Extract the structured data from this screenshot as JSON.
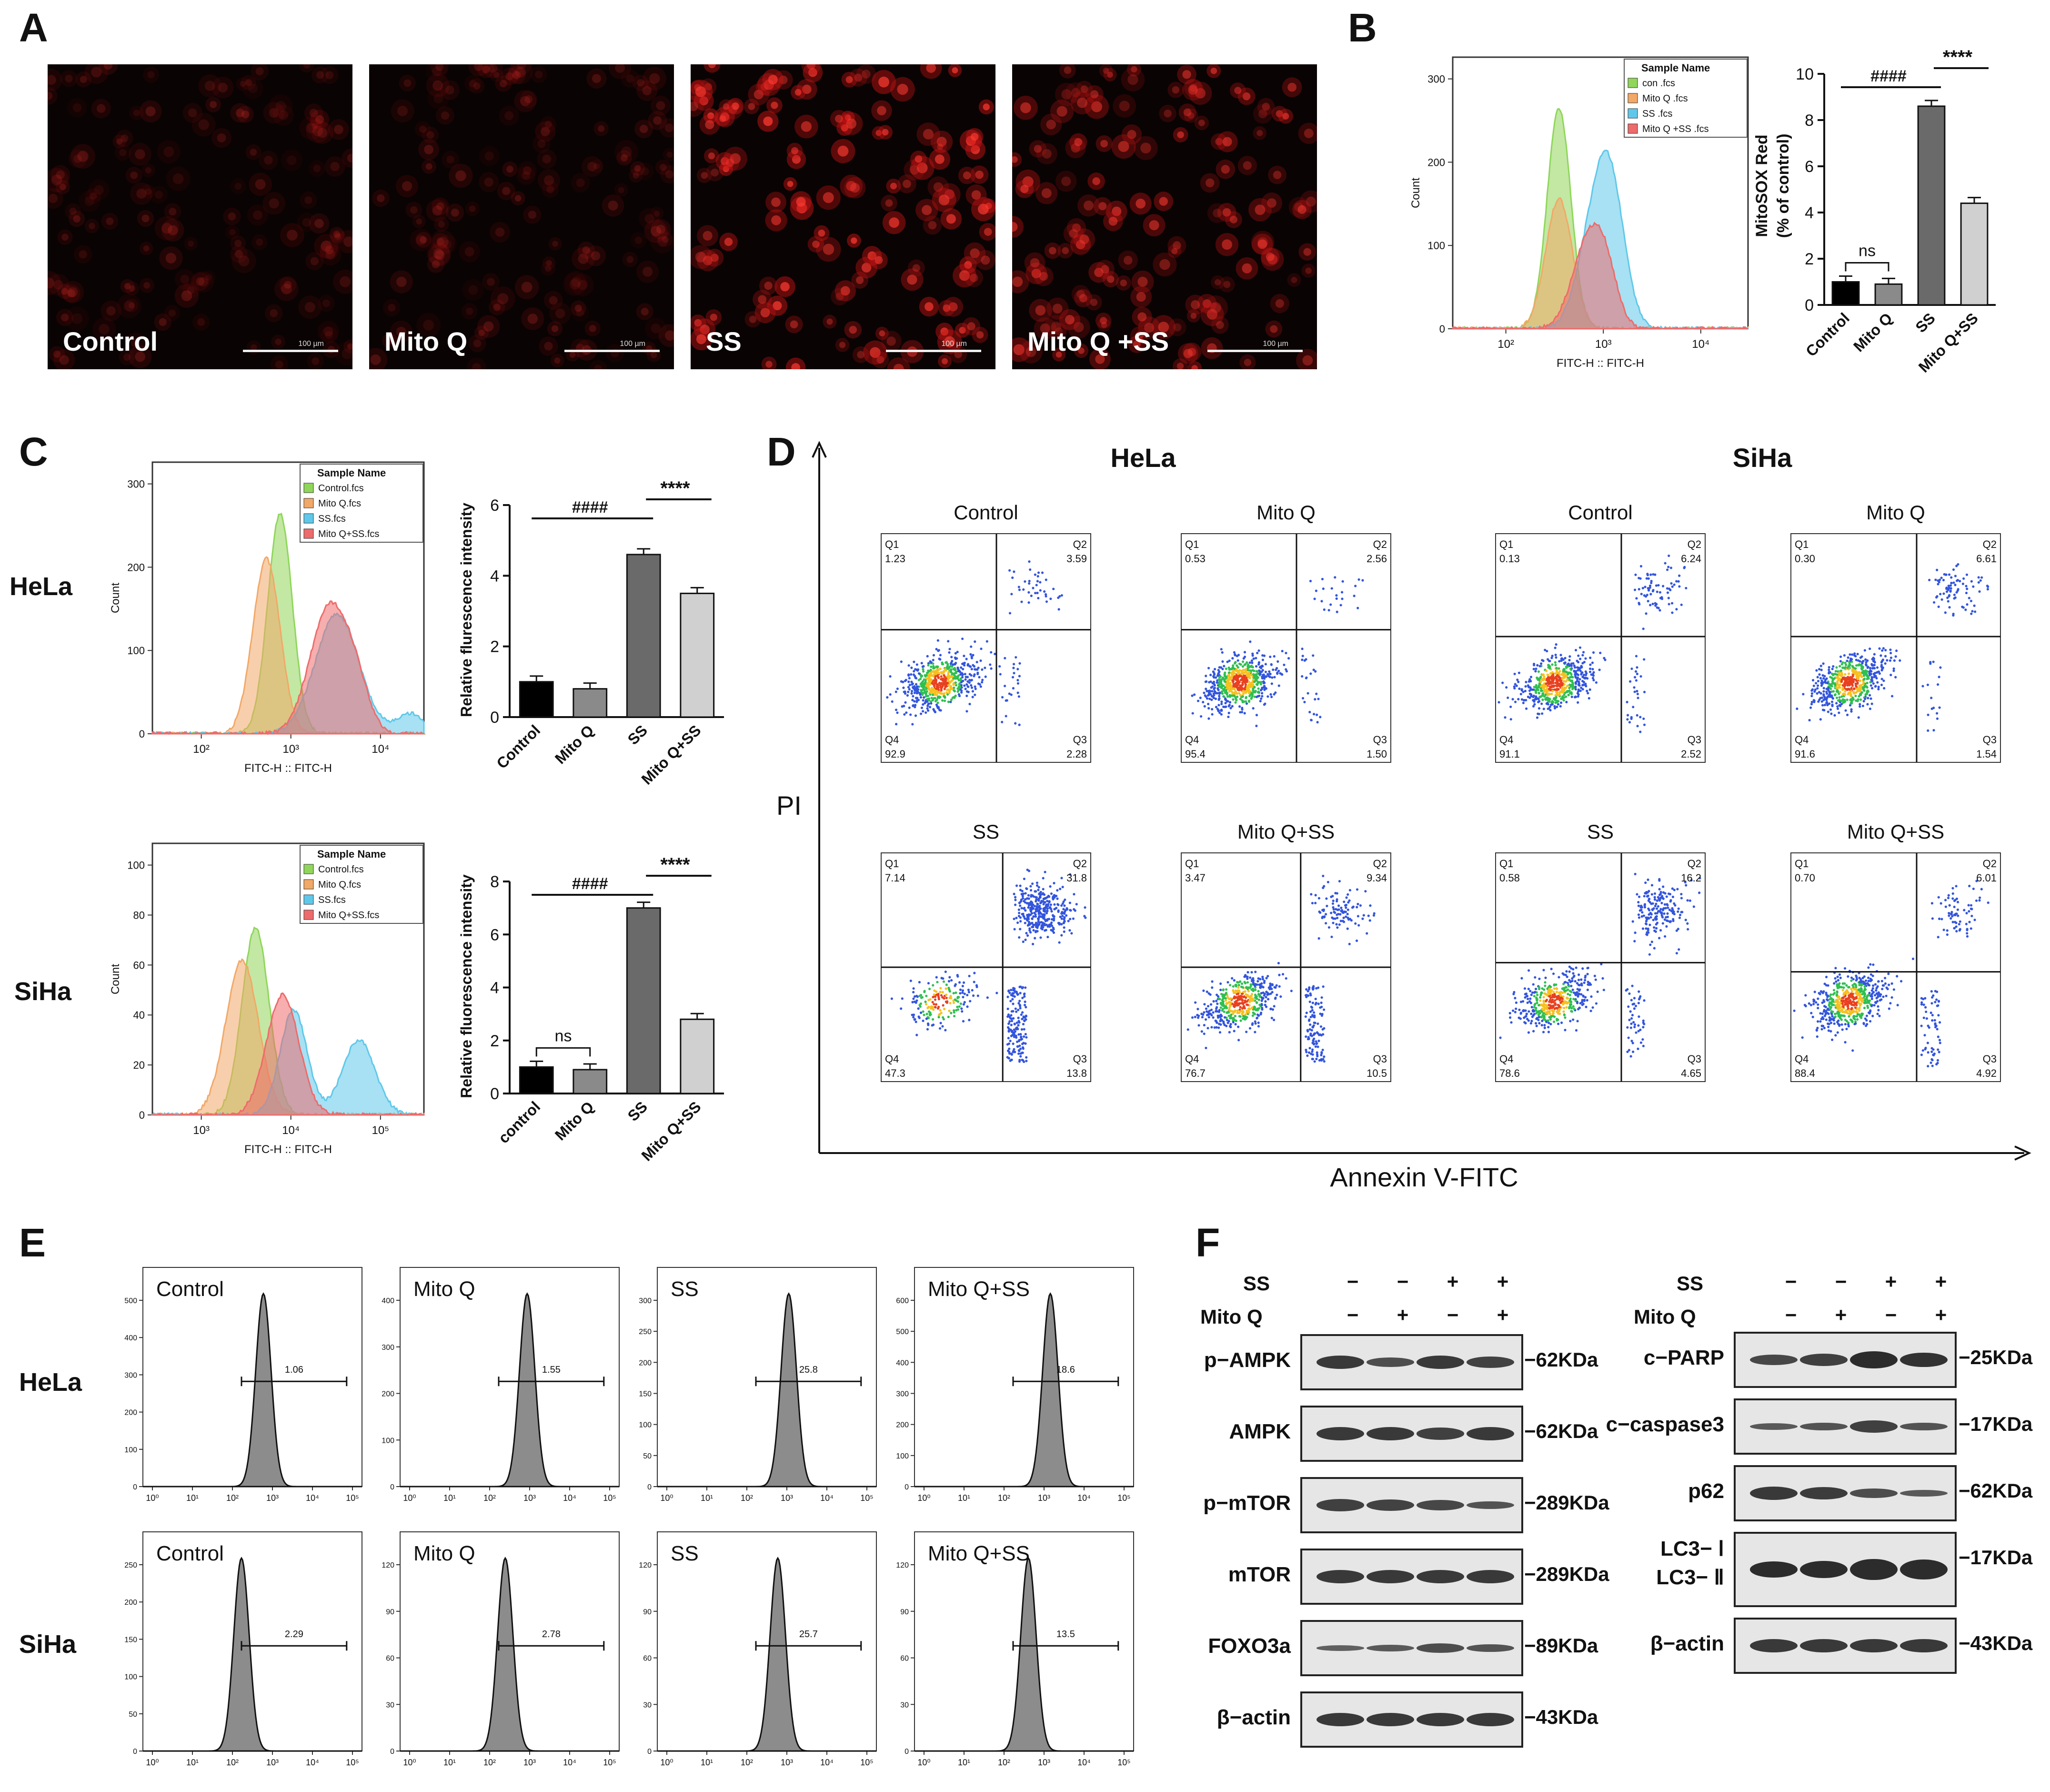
{
  "panels": {
    "A": "A",
    "B": "B",
    "C": "C",
    "D": "D",
    "E": "E",
    "F": "F"
  },
  "panelA": {
    "images": [
      {
        "label": "Control",
        "scale": "100 µm",
        "intensity": 0.25
      },
      {
        "label": "Mito Q",
        "scale": "100 µm",
        "intensity": 0.25
      },
      {
        "label": "SS",
        "scale": "100 µm",
        "intensity": 0.9
      },
      {
        "label": "Mito Q +SS",
        "scale": "100 µm",
        "intensity": 0.7
      }
    ]
  },
  "panelB": {
    "hist": {
      "ylabel": "Count",
      "xlabel": "FITC-H :: FITC-H",
      "yticks": [
        "0",
        "100",
        "200",
        "300"
      ],
      "xticks": [
        "10²",
        "10³",
        "10⁴"
      ],
      "legend_title": "Sample Name",
      "legend": [
        "con  .fcs",
        "Mito Q   .fcs",
        "SS   .fcs",
        "Mito Q +SS  .fcs"
      ]
    },
    "bar": {
      "ylabel": "MitoSOX Red\n(% of control)",
      "ylabel1": "MitoSOX Red",
      "ylabel2": "(% of control)",
      "yticks": [
        "0",
        "2",
        "4",
        "6",
        "8",
        "10"
      ],
      "sig_hash": "####",
      "sig_star": "****",
      "sig_ns": "ns"
    }
  },
  "panelC": {
    "hela_label": "HeLa",
    "siha_label": "SiHa",
    "hela_hist": {
      "ylabel": "Count",
      "xlabel": "FITC-H :: FITC-H",
      "yticks": [
        "0",
        "100",
        "200",
        "300"
      ],
      "xticks": [
        "10²",
        "10³",
        "10⁴"
      ],
      "legend_title": "Sample Name",
      "legend": [
        "Control.fcs",
        "Mito Q.fcs",
        "SS.fcs",
        "Mito Q+SS.fcs"
      ]
    },
    "siha_hist": {
      "ylabel": "Count",
      "xlabel": "FITC-H :: FITC-H",
      "yticks": [
        "0",
        "20",
        "40",
        "60",
        "80",
        "100"
      ],
      "xticks": [
        "10³",
        "10⁴",
        "10⁵"
      ],
      "legend_title": "Sample Name",
      "legend": [
        "Control.fcs",
        "Mito Q.fcs",
        "SS.fcs",
        "Mito Q+SS.fcs"
      ]
    },
    "hela_bar": {
      "ylabel": "Relative flurescence intensity",
      "yticks": [
        "0",
        "2",
        "4",
        "6"
      ],
      "sig_hash": "####",
      "sig_star": "****"
    },
    "siha_bar": {
      "ylabel": "Relative fluorescence intensity",
      "yticks": [
        "0",
        "2",
        "4",
        "6",
        "8"
      ],
      "sig_hash": "####",
      "sig_star": "****",
      "sig_ns": "ns"
    }
  },
  "panelD": {
    "hela": "HeLa",
    "siha": "SiHa",
    "yaxis": "PI",
    "xaxis": "Annexin V-FITC",
    "plots": [
      {
        "title": "Control",
        "q1": "1.23",
        "q2": "3.59",
        "q3": "2.28",
        "q4": "92.9"
      },
      {
        "title": "Mito Q",
        "q1": "0.53",
        "q2": "2.56",
        "q3": "1.50",
        "q4": "95.4"
      },
      {
        "title": "Control",
        "q1": "0.13",
        "q2": "6.24",
        "q3": "2.52",
        "q4": "91.1"
      },
      {
        "title": "Mito Q",
        "q1": "0.30",
        "q2": "6.61",
        "q3": "1.54",
        "q4": "91.6"
      },
      {
        "title": "SS",
        "q1": "7.14",
        "q2": "31.8",
        "q3": "13.8",
        "q4": "47.3"
      },
      {
        "title": "Mito Q+SS",
        "q1": "3.47",
        "q2": "9.34",
        "q3": "10.5",
        "q4": "76.7"
      },
      {
        "title": "SS",
        "q1": "0.58",
        "q2": "16.2",
        "q3": "4.65",
        "q4": "78.6"
      },
      {
        "title": "Mito Q+SS",
        "q1": "0.70",
        "q2": "6.01",
        "q3": "4.92",
        "q4": "88.4"
      }
    ],
    "qnames": [
      "Q1",
      "Q2",
      "Q3",
      "Q4"
    ]
  },
  "panelE": {
    "hela": "HeLa",
    "siha": "SiHa",
    "plots": [
      {
        "title": "Control",
        "gate": "1.06",
        "ymax": [
          "0",
          "100",
          "200",
          "300",
          "400",
          "500"
        ]
      },
      {
        "title": "Mito Q",
        "gate": "1.55",
        "ymax": [
          "0",
          "100",
          "200",
          "300",
          "400"
        ]
      },
      {
        "title": "SS",
        "gate": "25.8",
        "ymax": [
          "0",
          "50",
          "100",
          "150",
          "200",
          "250",
          "300"
        ]
      },
      {
        "title": "Mito Q+SS",
        "gate": "18.6",
        "ymax": [
          "0",
          "100",
          "200",
          "300",
          "400",
          "500",
          "600"
        ]
      },
      {
        "title": "Control",
        "gate": "2.29",
        "ymax": [
          "0",
          "50",
          "100",
          "150",
          "200",
          "250"
        ]
      },
      {
        "title": "Mito Q",
        "gate": "2.78",
        "ymax": [
          "0",
          "30",
          "60",
          "90",
          "120"
        ]
      },
      {
        "title": "SS",
        "gate": "25.7",
        "ymax": [
          "0",
          "30",
          "60",
          "90",
          "120"
        ]
      },
      {
        "title": "Mito Q+SS",
        "gate": "13.5",
        "ymax": [
          "0",
          "30",
          "60",
          "90",
          "120"
        ]
      }
    ],
    "xticks": [
      "10⁰",
      "10¹",
      "10²",
      "10³",
      "10⁴",
      "10⁵"
    ]
  },
  "panelF": {
    "ss": "SS",
    "mitoq": "Mito Q",
    "ss_signs": [
      "−",
      "−",
      "+",
      "+"
    ],
    "mitoq_signs": [
      "−",
      "+",
      "−",
      "+"
    ],
    "left": [
      {
        "name": "p−AMPK",
        "kda": "−62KDa"
      },
      {
        "name": "AMPK",
        "kda": "−62KDa"
      },
      {
        "name": "p−mTOR",
        "kda": "−289KDa"
      },
      {
        "name": "mTOR",
        "kda": "−289KDa"
      },
      {
        "name": "FOXO3a",
        "kda": "−89KDa"
      },
      {
        "name": "β−actin",
        "kda": "−43KDa"
      }
    ],
    "right": [
      {
        "name": "c−PARP",
        "kda": "−25KDa"
      },
      {
        "name": "c−caspase3",
        "kda": "−17KDa"
      },
      {
        "name": "p62",
        "kda": "−62KDa"
      },
      {
        "name": "LC3− Ⅰ",
        "name2": "LC3− Ⅱ",
        "kda": "−17KDa"
      },
      {
        "name": "β−actin",
        "kda": "−43KDa"
      }
    ]
  },
  "chart_data": [
    {
      "type": "bar",
      "categories": [
        "Control",
        "Mito Q",
        "SS",
        "Mito Q+SS"
      ],
      "values": [
        1.0,
        0.9,
        8.6,
        4.4
      ],
      "ylim": [
        0,
        10
      ],
      "ylabel": "MitoSOX Red (% of control)"
    },
    {
      "type": "bar",
      "categories": [
        "Control",
        "Mito Q",
        "SS",
        "Mito Q+SS"
      ],
      "values": [
        1.0,
        0.8,
        4.6,
        3.5
      ],
      "ylim": [
        0,
        6
      ],
      "ylabel": "Relative flurescence intensity"
    },
    {
      "type": "bar",
      "categories": [
        "control",
        "Mito Q",
        "SS",
        "Mito Q+SS"
      ],
      "values": [
        1.0,
        0.9,
        7.0,
        2.8
      ],
      "ylim": [
        0,
        8
      ],
      "ylabel": "Relative fluorescence intensity"
    }
  ],
  "colors": {
    "green": "#8fd65a",
    "orange": "#f2a867",
    "blue": "#5fc8ea",
    "red": "#ee6b6b",
    "bar1": "#000000",
    "bar2": "#8a8a8a",
    "bar3": "#6a6a6a",
    "bar4": "#d0d0d0"
  }
}
